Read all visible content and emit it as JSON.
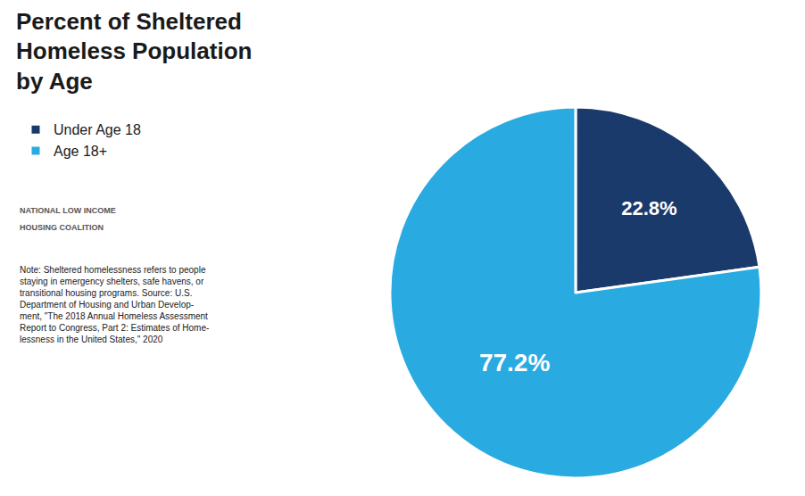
{
  "chart_data": {
    "type": "pie",
    "title": "Percent of Sheltered\nHomeless Population\nby Age",
    "categories": [
      "Under Age 18",
      "Age 18+"
    ],
    "values": [
      22.8,
      77.2
    ],
    "value_labels": [
      "22.8%",
      "77.2%"
    ],
    "colors": [
      "#1a3a6b",
      "#29aae1"
    ],
    "data_labels": true,
    "legend": "upper left",
    "annotations": [
      "NATIONAL LOW INCOME",
      "HOUSING COALITION",
      "Note: Sheltered homelessness refers to people\nstaying in emergency shelters, safe havens, or\ntransitional housing programs. Source: U.S.\nDepartment of Housing and Urban Develop-\nment, \"The 2018 Annual Homeless Assessment\nReport to Congress, Part 2: Estimates of Home-\nlessness in the United States,\" 2020"
    ]
  }
}
